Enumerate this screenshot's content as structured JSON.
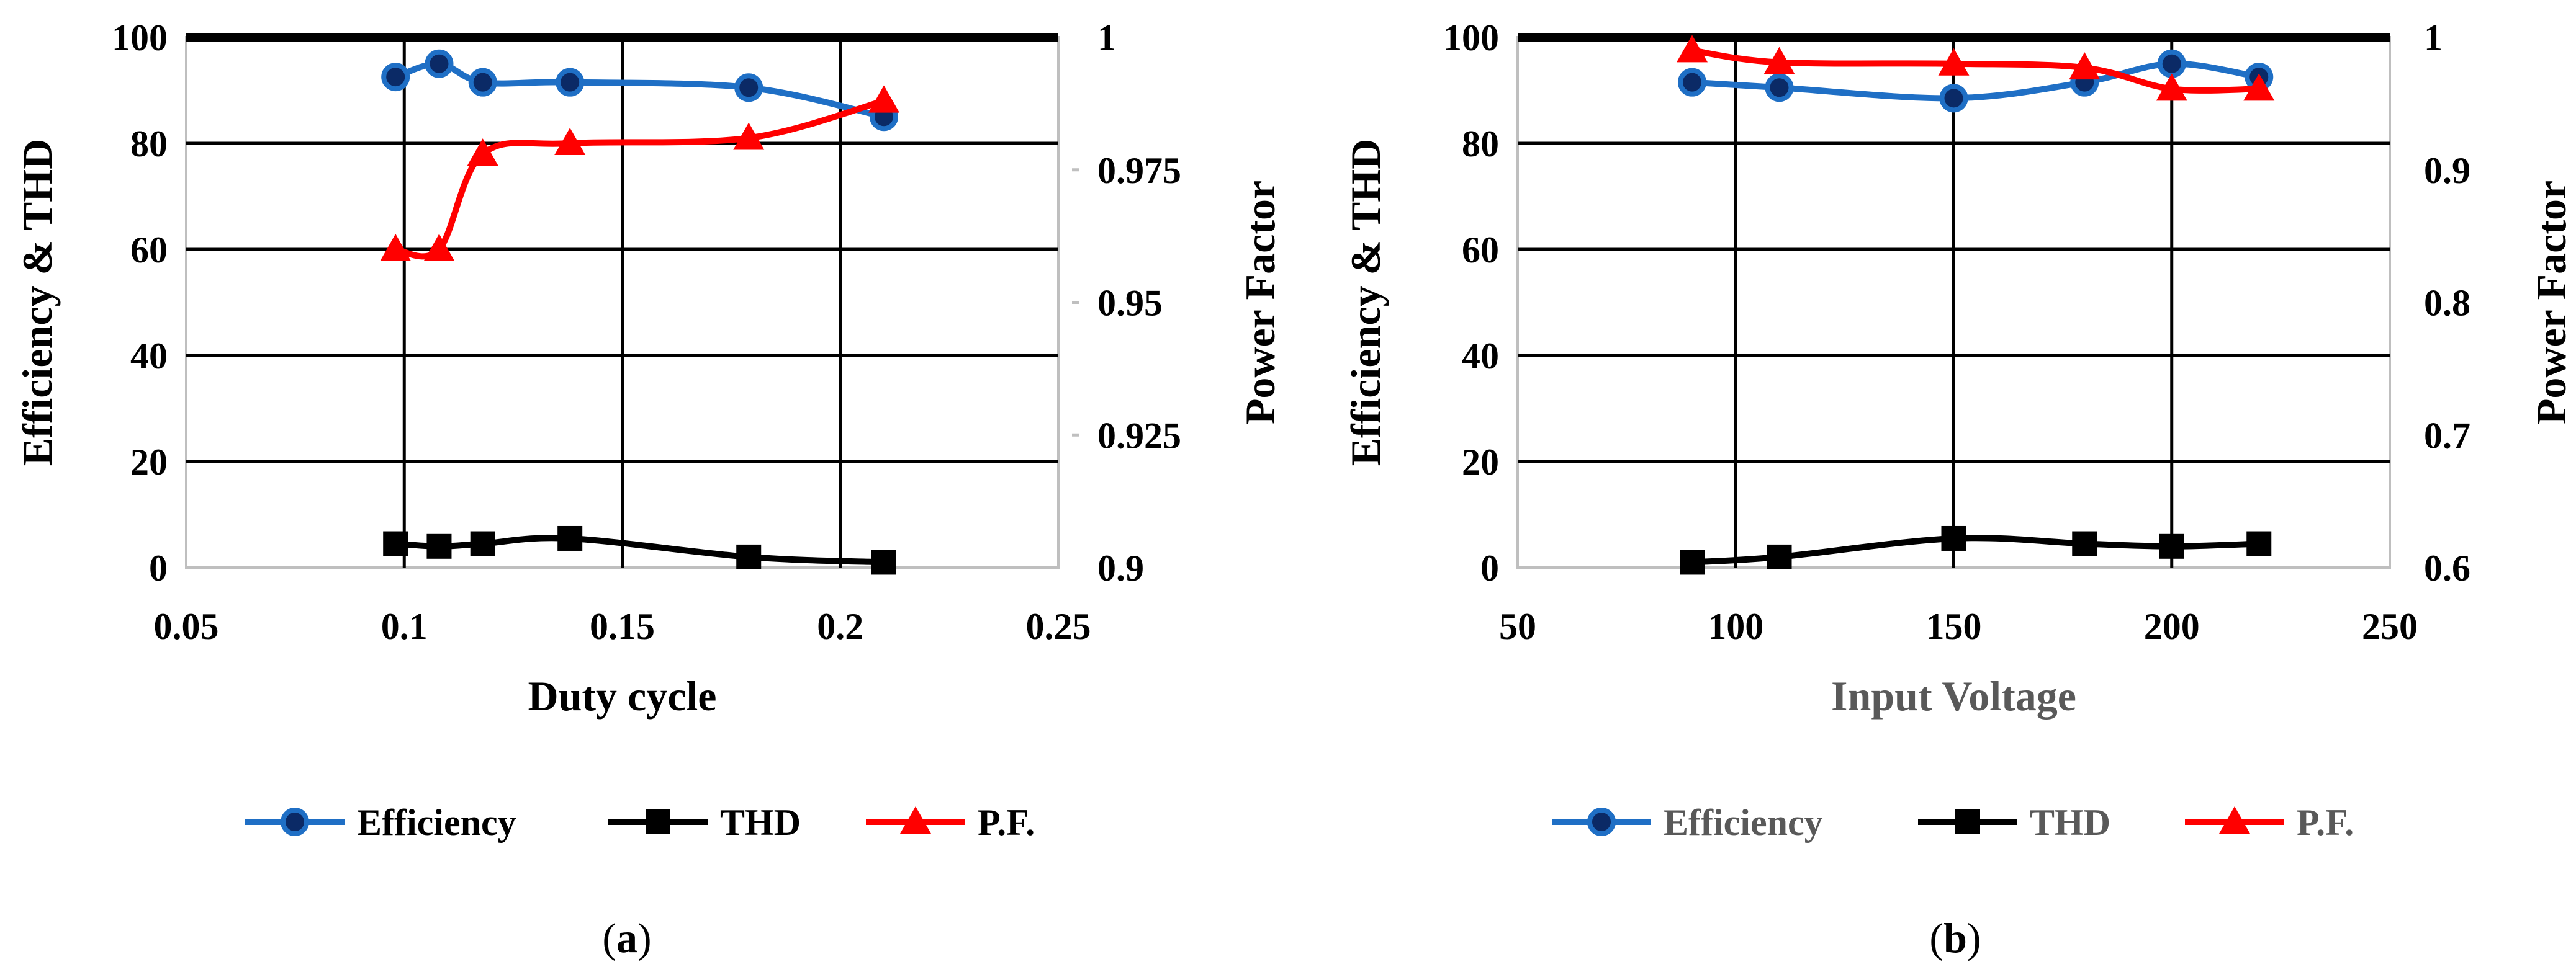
{
  "chart_data": [
    {
      "type": "line",
      "caption": "(a)",
      "xlabel": "Duty cycle",
      "ylabel": "Efficiency & THD",
      "y2label": "Power Factor",
      "xlim": [
        0.05,
        0.25
      ],
      "ylim": [
        0,
        100
      ],
      "y2lim": [
        0.9,
        1
      ],
      "xticks": [
        "0.05",
        "0.1",
        "0.15",
        "0.2",
        "0.25"
      ],
      "yticks": [
        "0",
        "20",
        "40",
        "60",
        "80",
        "100"
      ],
      "y2ticks": [
        "0.9",
        "0.925",
        "0.95",
        "0.975",
        "1"
      ],
      "grid": true,
      "legend_position": "bottom",
      "series": [
        {
          "name": "Efficiency",
          "axis": "left",
          "marker": "circle",
          "color": "#1f6fc5",
          "x": [
            0.098,
            0.108,
            0.118,
            0.138,
            0.179,
            0.21
          ],
          "y": [
            92.5,
            95,
            91.5,
            91.5,
            90.5,
            85
          ]
        },
        {
          "name": "THD",
          "axis": "left",
          "marker": "square",
          "color": "#000000",
          "x": [
            0.098,
            0.108,
            0.118,
            0.138,
            0.179,
            0.21
          ],
          "y": [
            4.5,
            4,
            4.5,
            5.5,
            2,
            1
          ]
        },
        {
          "name": "P.F.",
          "axis": "right",
          "marker": "triangle",
          "color": "#ff0000",
          "x": [
            0.098,
            0.108,
            0.118,
            0.138,
            0.179,
            0.21
          ],
          "y": [
            0.96,
            0.96,
            0.978,
            0.98,
            0.981,
            0.988
          ]
        }
      ]
    },
    {
      "type": "line",
      "caption": "(b)",
      "xlabel": "Input Voltage",
      "ylabel": "Efficiency & THD",
      "y2label": "Power Factor",
      "xlim": [
        50,
        250
      ],
      "ylim": [
        0,
        100
      ],
      "y2lim": [
        0.6,
        1
      ],
      "xticks": [
        "50",
        "100",
        "150",
        "200",
        "250"
      ],
      "yticks": [
        "0",
        "20",
        "40",
        "60",
        "80",
        "100"
      ],
      "y2ticks": [
        "0.6",
        "0.7",
        "0.8",
        "0.9",
        "1"
      ],
      "grid": true,
      "legend_position": "bottom",
      "series": [
        {
          "name": "Efficiency",
          "axis": "left",
          "marker": "circle",
          "color": "#1f6fc5",
          "x": [
            90,
            110,
            150,
            180,
            200,
            220
          ],
          "y": [
            91.5,
            90.5,
            88.5,
            91.5,
            95,
            92.5
          ]
        },
        {
          "name": "THD",
          "axis": "left",
          "marker": "square",
          "color": "#000000",
          "x": [
            90,
            110,
            150,
            180,
            200,
            220
          ],
          "y": [
            1,
            2,
            5.5,
            4.5,
            4,
            4.5
          ]
        },
        {
          "name": "P.F.",
          "axis": "right",
          "marker": "triangle",
          "color": "#ff0000",
          "x": [
            90,
            110,
            150,
            180,
            200,
            220
          ],
          "y": [
            0.99,
            0.981,
            0.98,
            0.977,
            0.961,
            0.961
          ]
        }
      ]
    }
  ]
}
